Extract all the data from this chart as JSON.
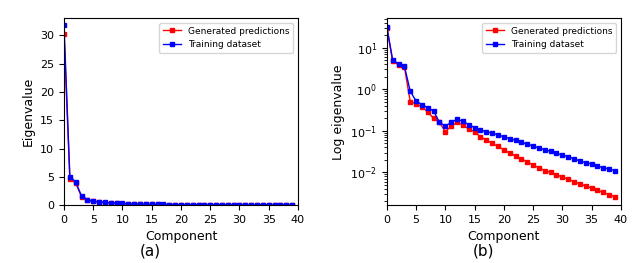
{
  "xlabel": "Component",
  "ylabel_a": "Eigenvalue",
  "ylabel_b": "Log eigenvalue",
  "legend_red": "Generated predictions",
  "legend_blue": "Training dataset",
  "xlim": [
    0,
    40
  ],
  "ylim_a": [
    0,
    33
  ],
  "xticks": [
    0,
    5,
    10,
    15,
    20,
    25,
    30,
    35,
    40
  ],
  "yticks_a": [
    0,
    5,
    10,
    15,
    20,
    25,
    30
  ],
  "label_a": "(a)",
  "label_b": "(b)",
  "red_lin": [
    30.3,
    4.7,
    3.9,
    1.5,
    0.9,
    0.65,
    0.55,
    0.45,
    0.38,
    0.32,
    0.27,
    0.23,
    0.2,
    0.17,
    0.15,
    0.13,
    0.12,
    0.11,
    0.1,
    0.09,
    0.085,
    0.08,
    0.075,
    0.07,
    0.065,
    0.06,
    0.055,
    0.05,
    0.046,
    0.042,
    0.038,
    0.034,
    0.031,
    0.028,
    0.025,
    0.022,
    0.02,
    0.018,
    0.015,
    0.013
  ],
  "blue_lin": [
    31.8,
    5.0,
    4.1,
    1.6,
    0.95,
    0.7,
    0.58,
    0.48,
    0.4,
    0.34,
    0.29,
    0.25,
    0.21,
    0.19,
    0.17,
    0.15,
    0.13,
    0.12,
    0.11,
    0.1,
    0.09,
    0.085,
    0.08,
    0.075,
    0.07,
    0.065,
    0.06,
    0.055,
    0.05,
    0.046,
    0.042,
    0.038,
    0.035,
    0.032,
    0.029,
    0.026,
    0.023,
    0.021,
    0.019,
    0.017
  ],
  "red_log": [
    30.3,
    4.7,
    3.9,
    3.5,
    0.5,
    0.45,
    0.38,
    0.28,
    0.2,
    0.16,
    0.095,
    0.13,
    0.16,
    0.14,
    0.11,
    0.095,
    0.072,
    0.06,
    0.05,
    0.042,
    0.035,
    0.029,
    0.025,
    0.021,
    0.018,
    0.015,
    0.013,
    0.011,
    0.01,
    0.0088,
    0.0077,
    0.0068,
    0.006,
    0.0053,
    0.0047,
    0.0042,
    0.0037,
    0.0033,
    0.0029,
    0.0026
  ],
  "blue_log": [
    31.8,
    5.0,
    4.1,
    3.6,
    0.9,
    0.52,
    0.43,
    0.36,
    0.3,
    0.16,
    0.13,
    0.16,
    0.19,
    0.17,
    0.14,
    0.12,
    0.105,
    0.095,
    0.088,
    0.08,
    0.072,
    0.065,
    0.059,
    0.053,
    0.048,
    0.043,
    0.039,
    0.035,
    0.032,
    0.029,
    0.026,
    0.024,
    0.021,
    0.019,
    0.017,
    0.016,
    0.014,
    0.013,
    0.012,
    0.011
  ]
}
